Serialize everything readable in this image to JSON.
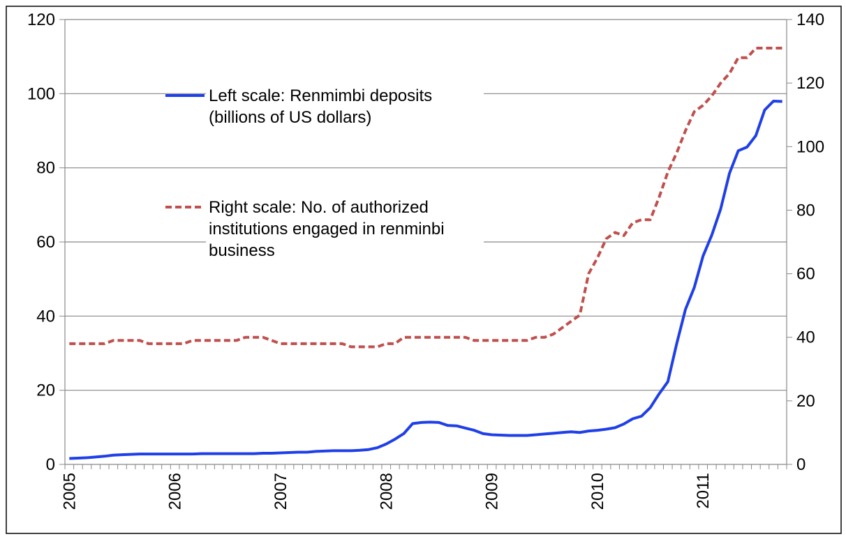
{
  "chart_data": {
    "type": "line",
    "categories": [
      "2005",
      null,
      null,
      null,
      null,
      null,
      null,
      null,
      null,
      null,
      null,
      null,
      "2006",
      null,
      null,
      null,
      null,
      null,
      null,
      null,
      null,
      null,
      null,
      null,
      "2007",
      null,
      null,
      null,
      null,
      null,
      null,
      null,
      null,
      null,
      null,
      null,
      "2008",
      null,
      null,
      null,
      null,
      null,
      null,
      null,
      null,
      null,
      null,
      null,
      "2009",
      null,
      null,
      null,
      null,
      null,
      null,
      null,
      null,
      null,
      null,
      null,
      "2010",
      null,
      null,
      null,
      null,
      null,
      null,
      null,
      null,
      null,
      null,
      null,
      "2011",
      null,
      null,
      null,
      null,
      null,
      null,
      null,
      null,
      null
    ],
    "series": [
      {
        "name": "Left scale: Renmimbi deposits (billions of US dollars)",
        "color": "#1f3fe8",
        "dash": false,
        "axis": "y",
        "values": [
          1.6,
          1.7,
          1.8,
          2.0,
          2.2,
          2.5,
          2.6,
          2.7,
          2.8,
          2.8,
          2.8,
          2.8,
          2.8,
          2.8,
          2.8,
          2.9,
          2.9,
          2.9,
          2.9,
          2.9,
          2.9,
          2.9,
          3.0,
          3.0,
          3.1,
          3.2,
          3.3,
          3.3,
          3.5,
          3.6,
          3.7,
          3.7,
          3.7,
          3.8,
          4.0,
          4.5,
          5.5,
          6.8,
          8.3,
          11.0,
          11.3,
          11.4,
          11.3,
          10.5,
          10.4,
          9.8,
          9.2,
          8.3,
          8.0,
          7.9,
          7.8,
          7.8,
          7.8,
          8.0,
          8.2,
          8.4,
          8.6,
          8.8,
          8.6,
          9.0,
          9.2,
          9.5,
          9.9,
          10.9,
          12.3,
          13.0,
          15.3,
          19.0,
          22.3,
          32.5,
          41.8,
          47.7,
          56.2,
          61.9,
          68.9,
          78.5,
          84.6,
          85.6,
          88.7,
          95.6,
          98.0,
          97.9
        ]
      },
      {
        "name": "Right scale: No. of authorized institutions engaged in renminbi business",
        "color": "#c0504d",
        "dash": true,
        "axis": "y2",
        "values": [
          38,
          38,
          38,
          38,
          38,
          39,
          39,
          39,
          39,
          38,
          38,
          38,
          38,
          38,
          39,
          39,
          39,
          39,
          39,
          39,
          40,
          40,
          40,
          39,
          38,
          38,
          38,
          38,
          38,
          38,
          38,
          38,
          37,
          37,
          37,
          37,
          38,
          38,
          40,
          40,
          40,
          40,
          40,
          40,
          40,
          40,
          39,
          39,
          39,
          39,
          39,
          39,
          39,
          40,
          40,
          41,
          43,
          45,
          47,
          60,
          65,
          71,
          73,
          72,
          76,
          77,
          77,
          84,
          92,
          98,
          105,
          111,
          113,
          116,
          120,
          123,
          128,
          128,
          131,
          131,
          131,
          131
        ]
      }
    ],
    "ylim": [
      0,
      120
    ],
    "yticks": [
      0,
      20,
      40,
      60,
      80,
      100,
      120
    ],
    "y2lim": [
      0,
      140
    ],
    "y2ticks": [
      0,
      20,
      40,
      60,
      80,
      100,
      120,
      140
    ],
    "grid": true
  }
}
